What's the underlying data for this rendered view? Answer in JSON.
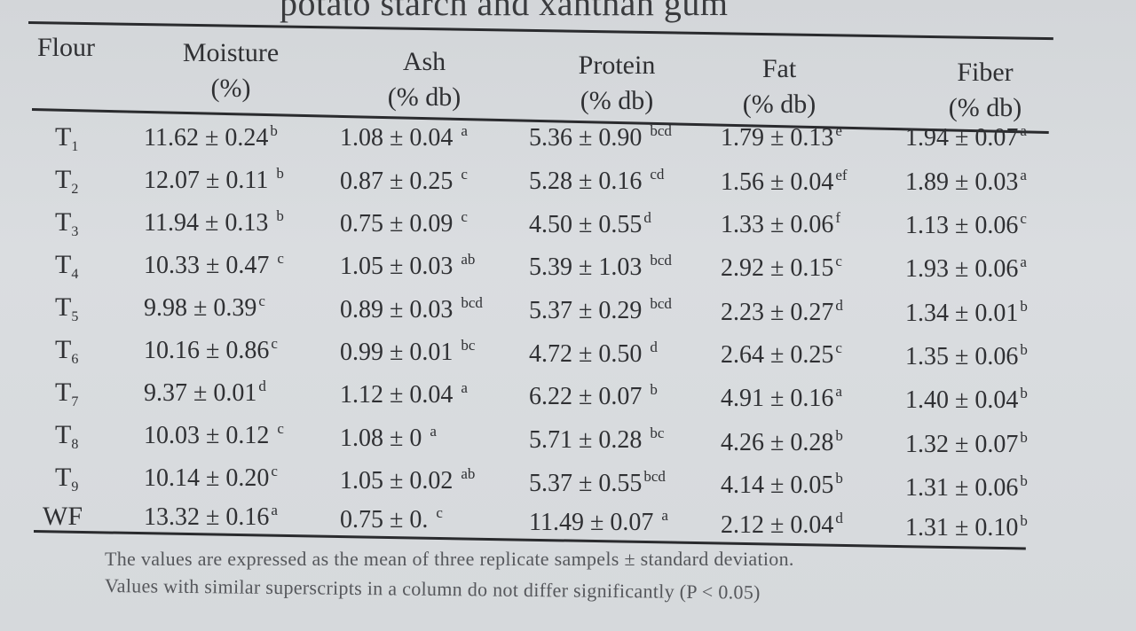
{
  "title_fragment": "potato starch and xanthan gum",
  "headers": [
    {
      "line1": "Flour",
      "line2": ""
    },
    {
      "line1": "Moisture",
      "line2": "(%)"
    },
    {
      "line1": "Ash",
      "line2": "(% db)"
    },
    {
      "line1": "Protein",
      "line2": "(% db)"
    },
    {
      "line1": "Fat",
      "line2": "(% db)"
    },
    {
      "line1": "Fiber",
      "line2": "(% db)"
    }
  ],
  "rows": [
    {
      "flour": "T",
      "sub": "1",
      "cells": [
        [
          "11.62 ± 0.24",
          "b"
        ],
        [
          "1.08 ± 0.04 ",
          "a"
        ],
        [
          "5.36 ± 0.90 ",
          "bcd"
        ],
        [
          "1.79 ± 0.13",
          "e"
        ],
        [
          "1.94 ± 0.07",
          "a"
        ]
      ]
    },
    {
      "flour": "T",
      "sub": "2",
      "cells": [
        [
          "12.07 ± 0.11 ",
          "b"
        ],
        [
          "0.87 ± 0.25 ",
          "c"
        ],
        [
          "5.28 ± 0.16 ",
          "cd"
        ],
        [
          "1.56 ± 0.04",
          "ef"
        ],
        [
          "1.89 ± 0.03",
          "a"
        ]
      ]
    },
    {
      "flour": "T",
      "sub": "3",
      "cells": [
        [
          "11.94 ± 0.13 ",
          "b"
        ],
        [
          "0.75 ± 0.09 ",
          "c"
        ],
        [
          "4.50 ± 0.55",
          "d"
        ],
        [
          "1.33 ± 0.06",
          "f"
        ],
        [
          "1.13 ± 0.06",
          "c"
        ]
      ]
    },
    {
      "flour": "T",
      "sub": "4",
      "cells": [
        [
          "10.33 ± 0.47 ",
          "c"
        ],
        [
          "1.05 ± 0.03 ",
          "ab"
        ],
        [
          "5.39 ± 1.03 ",
          "bcd"
        ],
        [
          "2.92 ± 0.15",
          "c"
        ],
        [
          "1.93 ± 0.06",
          "a"
        ]
      ]
    },
    {
      "flour": "T",
      "sub": "5",
      "cells": [
        [
          "9.98 ± 0.39",
          "c"
        ],
        [
          "0.89 ± 0.03 ",
          "bcd"
        ],
        [
          "5.37 ± 0.29 ",
          "bcd"
        ],
        [
          "2.23 ± 0.27",
          "d"
        ],
        [
          "1.34 ± 0.01",
          "b"
        ]
      ]
    },
    {
      "flour": "T",
      "sub": "6",
      "cells": [
        [
          "10.16 ± 0.86",
          "c"
        ],
        [
          "0.99 ± 0.01 ",
          "bc"
        ],
        [
          "4.72 ± 0.50 ",
          "d"
        ],
        [
          "2.64 ± 0.25",
          "c"
        ],
        [
          "1.35 ± 0.06",
          "b"
        ]
      ]
    },
    {
      "flour": "T",
      "sub": "7",
      "cells": [
        [
          "9.37 ± 0.01",
          "d"
        ],
        [
          "1.12 ± 0.04 ",
          "a"
        ],
        [
          "6.22 ± 0.07 ",
          "b"
        ],
        [
          "4.91 ± 0.16",
          "a"
        ],
        [
          "1.40 ± 0.04",
          "b"
        ]
      ]
    },
    {
      "flour": "T",
      "sub": "8",
      "cells": [
        [
          "10.03 ± 0.12 ",
          "c"
        ],
        [
          "1.08 ± 0 ",
          "a"
        ],
        [
          "5.71 ± 0.28 ",
          "bc"
        ],
        [
          "4.26 ± 0.28",
          "b"
        ],
        [
          "1.32 ± 0.07",
          "b"
        ]
      ]
    },
    {
      "flour": "T",
      "sub": "9",
      "cells": [
        [
          "10.14 ± 0.20",
          "c"
        ],
        [
          "1.05 ± 0.02 ",
          "ab"
        ],
        [
          "5.37 ± 0.55",
          "bcd"
        ],
        [
          "4.14 ± 0.05",
          "b"
        ],
        [
          "1.31 ± 0.06",
          "b"
        ]
      ]
    },
    {
      "flour": "WF",
      "sub": "",
      "cells": [
        [
          "13.32 ± 0.16",
          "a"
        ],
        [
          "0.75 ± 0. ",
          "c"
        ],
        [
          "11.49 ± 0.07 ",
          "a"
        ],
        [
          "2.12 ± 0.04",
          "d"
        ],
        [
          "1.31 ± 0.10",
          "b"
        ]
      ]
    }
  ],
  "notes": [
    "The values are expressed as the mean of three replicate sampels ± standard deviation.",
    "Values with similar superscripts in a column do not differ significantly (P < 0.05)"
  ]
}
